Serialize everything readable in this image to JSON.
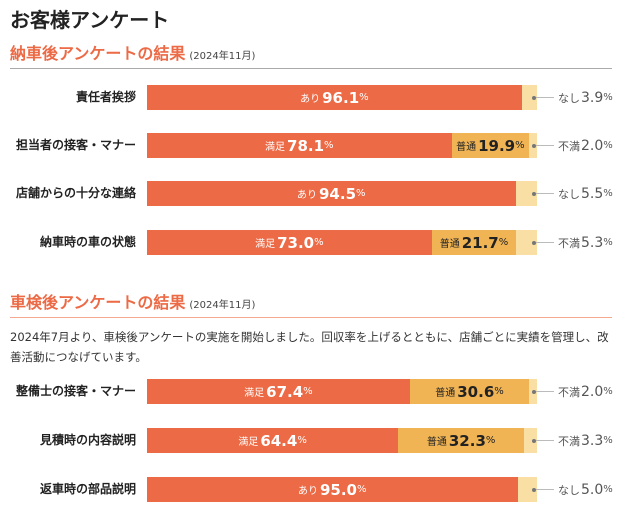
{
  "page_title": "お客様アンケート",
  "colors": {
    "primary": "#ec6a45",
    "middle": "#f0b455",
    "low": "#f9dfa4",
    "heading": "#ec6a45"
  },
  "chart_data": [
    {
      "type": "bar",
      "stacked": "horizontal-100%",
      "title": "納車後アンケートの結果",
      "subtitle": "(2024年11月)",
      "categories": [
        "責任者挨拶",
        "担当者の接客・マナー",
        "店舗からの十分な連絡",
        "納車時の車の状態"
      ],
      "rows": [
        {
          "segments": [
            {
              "name": "あり",
              "value": 96.1
            },
            {
              "name": "なし",
              "value": 3.9
            }
          ]
        },
        {
          "segments": [
            {
              "name": "満足",
              "value": 78.1
            },
            {
              "name": "普通",
              "value": 19.9
            },
            {
              "name": "不満",
              "value": 2.0
            }
          ]
        },
        {
          "segments": [
            {
              "name": "あり",
              "value": 94.5
            },
            {
              "name": "なし",
              "value": 5.5
            }
          ]
        },
        {
          "segments": [
            {
              "name": "満足",
              "value": 73.0
            },
            {
              "name": "普通",
              "value": 21.7
            },
            {
              "name": "不満",
              "value": 5.3
            }
          ]
        }
      ]
    },
    {
      "type": "bar",
      "stacked": "horizontal-100%",
      "title": "車検後アンケートの結果",
      "subtitle": "(2024年11月)",
      "description": "2024年7月より、車検後アンケートの実施を開始しました。回収率を上げるとともに、店舗ごとに実績を管理し、改善活動につなげています。",
      "categories": [
        "整備士の接客・マナー",
        "見積時の内容説明",
        "返車時の部品説明"
      ],
      "rows": [
        {
          "segments": [
            {
              "name": "満足",
              "value": 67.4
            },
            {
              "name": "普通",
              "value": 30.6
            },
            {
              "name": "不満",
              "value": 2.0
            }
          ]
        },
        {
          "segments": [
            {
              "name": "満足",
              "value": 64.4
            },
            {
              "name": "普通",
              "value": 32.3
            },
            {
              "name": "不満",
              "value": 3.3
            }
          ]
        },
        {
          "segments": [
            {
              "name": "あり",
              "value": 95.0
            },
            {
              "name": "なし",
              "value": 5.0
            }
          ]
        }
      ]
    }
  ],
  "unit": "%"
}
